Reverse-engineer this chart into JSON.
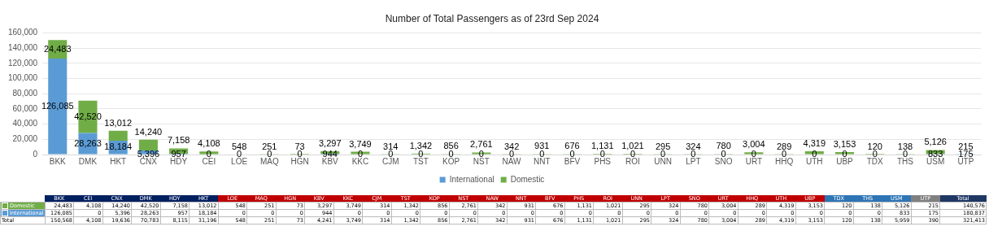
{
  "chart_data": [
    {
      "type": "bar",
      "title": "Number of Total Passengers as of 23rd Sep 2024",
      "stacked": true,
      "legend": "bottom",
      "grid": "y",
      "ylim": [
        0,
        160000
      ],
      "yticks": [
        0,
        {
          "value": 20000,
          "label": "20,000"
        },
        {
          "value": 40000,
          "label": "40,000"
        },
        {
          "value": 60000,
          "label": "60,000"
        },
        {
          "value": 80000,
          "label": "80,000"
        },
        {
          "value": 100000,
          "label": "100,000"
        },
        {
          "value": 120000,
          "label": "120,000"
        },
        {
          "value": 140000,
          "label": "140,000"
        },
        {
          "value": 160000,
          "label": "160,000"
        }
      ],
      "categories": [
        "BKK",
        "DMK",
        "HKT",
        "CNX",
        "HDY",
        "CEI",
        "LOE",
        "MAQ",
        "HGN",
        "KBV",
        "KKC",
        "CJM",
        "TST",
        "KOP",
        "NST",
        "NAW",
        "NNT",
        "BFV",
        "PHS",
        "ROI",
        "UNN",
        "LPT",
        "SNO",
        "URT",
        "HHQ",
        "UTH",
        "UBP",
        "TDX",
        "THS",
        "USM",
        "UTP"
      ],
      "series": [
        {
          "name": "International",
          "color": "#5b9bd5",
          "values": [
            126085,
            28263,
            18184,
            5396,
            957,
            0,
            0,
            0,
            0,
            944,
            0,
            0,
            0,
            0,
            0,
            0,
            0,
            0,
            0,
            0,
            0,
            0,
            0,
            0,
            0,
            0,
            0,
            0,
            0,
            833,
            175
          ],
          "value_labels": [
            "126,085",
            "28,263",
            "18,184",
            "5,396",
            "957",
            "0",
            "0",
            "0",
            "0",
            "944",
            "0",
            "0",
            "0",
            "0",
            "0",
            "0",
            "0",
            "0",
            "0",
            "0",
            "0",
            "0",
            "0",
            "0",
            "0",
            "0",
            "0",
            "0",
            "0",
            "833",
            "175"
          ]
        },
        {
          "name": "Domestic",
          "color": "#70ad47",
          "values": [
            24483,
            42520,
            13012,
            14240,
            7158,
            4108,
            548,
            251,
            73,
            3297,
            3749,
            314,
            1342,
            856,
            2761,
            342,
            931,
            676,
            1131,
            1021,
            295,
            324,
            780,
            3004,
            289,
            4319,
            3153,
            120,
            138,
            5126,
            215
          ],
          "value_labels": [
            "24,483",
            "42,520",
            "13,012",
            "14,240",
            "7,158",
            "4,108",
            "548",
            "251",
            "73",
            "3,297",
            "3,749",
            "314",
            "1,342",
            "856",
            "2,761",
            "342",
            "931",
            "676",
            "1,131",
            "1,021",
            "295",
            "324",
            "780",
            "3,004",
            "289",
            "4,319",
            "3,153",
            "120",
            "138",
            "5,126",
            "215"
          ]
        }
      ]
    },
    {
      "type": "other",
      "categories": [
        "BKK",
        "CEI",
        "CNX",
        "DMK",
        "HDY",
        "HKT",
        "LOE",
        "MAQ",
        "HGN",
        "KBV",
        "KKC",
        "CJM",
        "TST",
        "KOP",
        "NST",
        "NAW",
        "NNT",
        "BFV",
        "PHS",
        "ROI",
        "UNN",
        "LPT",
        "SNO",
        "URT",
        "HHQ",
        "UTH",
        "UBP",
        "TDX",
        "THS",
        "USM",
        "UTP",
        "Total"
      ],
      "colors": [
        "#002060",
        "#002060",
        "#002060",
        "#002060",
        "#002060",
        "#002060",
        "#c00000",
        "#c00000",
        "#c00000",
        "#c00000",
        "#c00000",
        "#c00000",
        "#c00000",
        "#c00000",
        "#c00000",
        "#c00000",
        "#c00000",
        "#c00000",
        "#c00000",
        "#c00000",
        "#c00000",
        "#c00000",
        "#c00000",
        "#c00000",
        "#c00000",
        "#c00000",
        "#c00000",
        "#2e75b6",
        "#2e75b6",
        "#2e75b6",
        "#808080",
        "#1f3864"
      ],
      "series": [
        {
          "name": "Domestic",
          "color": "#70ad47",
          "values": [
            24483,
            4108,
            14240,
            42520,
            7158,
            13012,
            548,
            251,
            73,
            3297,
            3749,
            314,
            1342,
            856,
            2761,
            342,
            931,
            676,
            1131,
            1021,
            295,
            324,
            780,
            3004,
            289,
            4319,
            3153,
            120,
            138,
            5126,
            215,
            140576
          ],
          "value_labels": [
            "24,483",
            "4,108",
            "14,240",
            "42,520",
            "7,158",
            "13,012",
            "548",
            "251",
            "73",
            "3,297",
            "3,749",
            "314",
            "1,342",
            "856",
            "2,761",
            "342",
            "931",
            "676",
            "1,131",
            "1,021",
            "295",
            "324",
            "780",
            "3,004",
            "289",
            "4,319",
            "3,153",
            "120",
            "138",
            "5,126",
            "215",
            "140,576"
          ]
        },
        {
          "name": "International",
          "color": "#5b9bd5",
          "values": [
            126085,
            0,
            5396,
            28263,
            957,
            18184,
            0,
            0,
            0,
            944,
            0,
            0,
            0,
            0,
            0,
            0,
            0,
            0,
            0,
            0,
            0,
            0,
            0,
            0,
            0,
            0,
            0,
            0,
            0,
            833,
            175,
            180837
          ],
          "value_labels": [
            "126,085",
            "0",
            "5,396",
            "28,263",
            "957",
            "18,184",
            "0",
            "0",
            "0",
            "944",
            "0",
            "0",
            "0",
            "0",
            "0",
            "0",
            "0",
            "0",
            "0",
            "0",
            "0",
            "0",
            "0",
            "0",
            "0",
            "0",
            "0",
            "0",
            "0",
            "833",
            "175",
            "180,837"
          ]
        },
        {
          "name": "Total",
          "values": [
            150568,
            4108,
            19636,
            70783,
            8115,
            31196,
            548,
            251,
            73,
            4241,
            3749,
            314,
            1342,
            856,
            2761,
            342,
            931,
            676,
            1131,
            1021,
            295,
            324,
            780,
            3004,
            289,
            4319,
            3153,
            120,
            138,
            5959,
            390,
            321413
          ],
          "value_labels": [
            "150,568",
            "4,108",
            "19,636",
            "70,783",
            "8,115",
            "31,196",
            "548",
            "251",
            "73",
            "4,241",
            "3,749",
            "314",
            "1,342",
            "856",
            "2,761",
            "342",
            "931",
            "676",
            "1,131",
            "1,021",
            "295",
            "324",
            "780",
            "3,004",
            "289",
            "4,319",
            "3,153",
            "120",
            "138",
            "5,959",
            "390",
            "321,413"
          ]
        }
      ]
    }
  ]
}
